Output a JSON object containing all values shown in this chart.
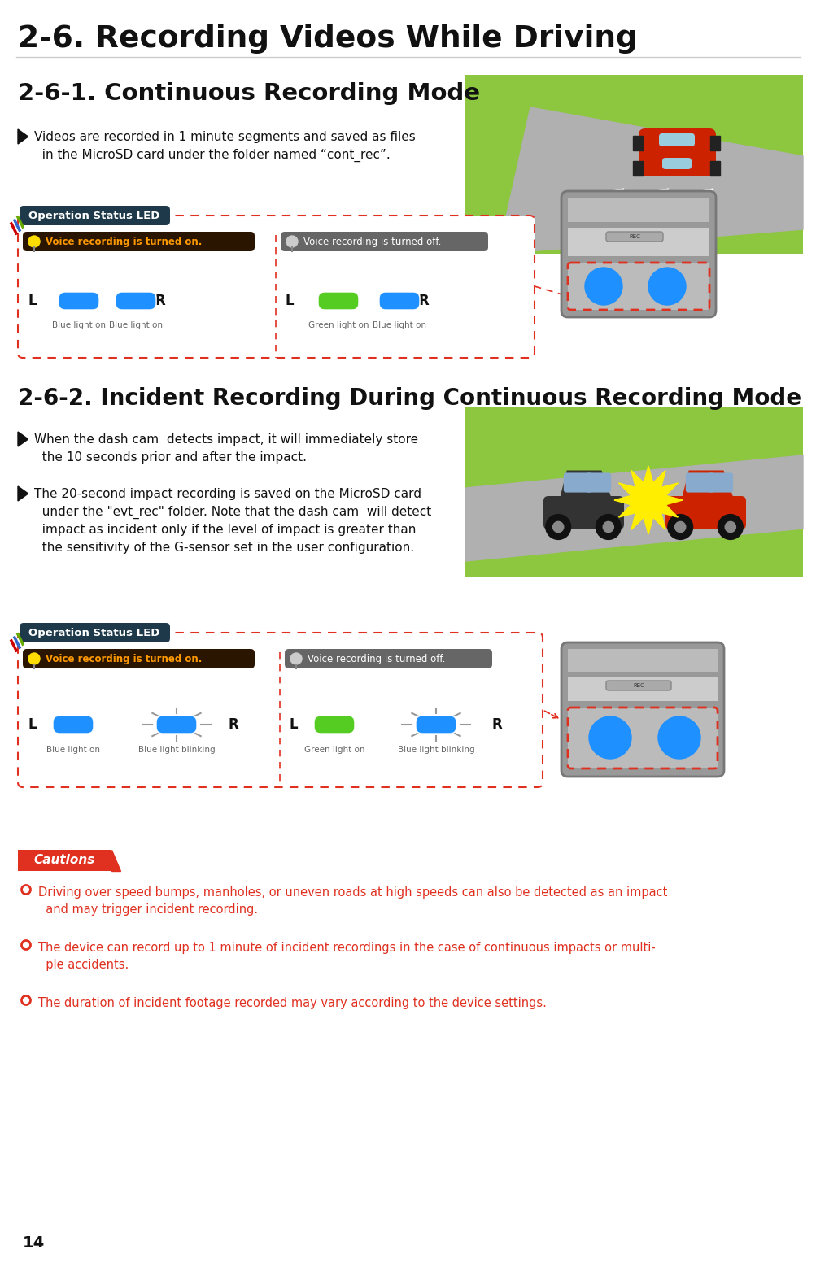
{
  "page_bg": "#ffffff",
  "main_title": "2-6. Recording Videos While Driving",
  "section1_title": "2-6-1. Continuous Recording Mode",
  "section1_bullet": "Videos are recorded in 1 minute segments and saved as files\n  in the MicroSD card under the folder named “cont_rec”.",
  "section2_title": "2-6-2. Incident Recording During Continuous Recording Mode",
  "section2_bullet1": "When the dash cam  detects impact, it will immediately store\n  the 10 seconds prior and after the impact.",
  "section2_bullet2": "The 20-second impact recording is saved on the MicroSD card\n  under the \"evt_rec\" folder. Note that the dash cam  will detect\n  impact as incident only if the level of impact is greater than\n  the sensitivity of the G-sensor set in the user configuration.",
  "op_status_label": "Operation Status LED",
  "voice_on_label": "Voice recording is turned on.",
  "voice_off_label": "Voice recording is turned off.",
  "op_bg_dark": "#1e3a4a",
  "voice_on_bg": "#2a1500",
  "voice_off_bg": "#666666",
  "led_blue": "#1e90ff",
  "led_green": "#55cc22",
  "cautions_title": "Cautions",
  "caution_color": "#e03020",
  "caution1": "Driving over speed bumps, manholes, or uneven roads at high speeds can also be detected as an impact\n  and may trigger incident recording.",
  "caution2": "The device can record up to 1 minute of incident recordings in the case of continuous impacts or multi-\n  ple accidents.",
  "caution3": "The duration of incident footage recorded may vary according to the device settings.",
  "page_num": "14",
  "dashed_red": "#e03020",
  "text_dark": "#111111",
  "text_gray": "#666666"
}
